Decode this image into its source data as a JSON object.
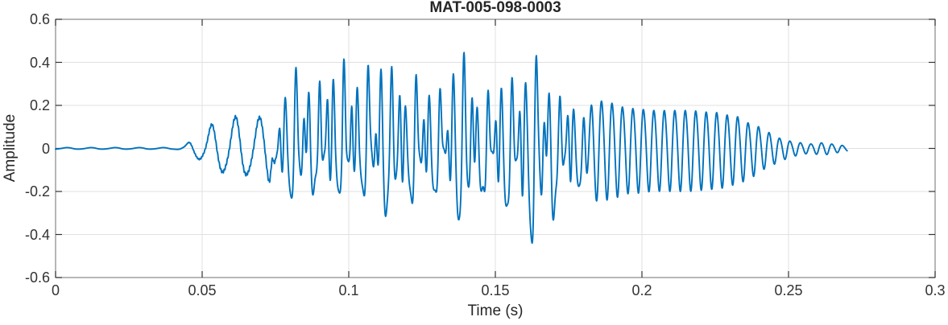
{
  "chart_data": {
    "type": "line",
    "title": "MAT-005-098-0003",
    "xlabel": "Time (s)",
    "ylabel": "Amplitude",
    "xlim": [
      0,
      0.3
    ],
    "ylim": [
      -0.6,
      0.6
    ],
    "grid": true,
    "legend": null,
    "xticks": [
      {
        "v": 0,
        "label": "0"
      },
      {
        "v": 0.05,
        "label": "0.05"
      },
      {
        "v": 0.1,
        "label": "0.1"
      },
      {
        "v": 0.15,
        "label": "0.15"
      },
      {
        "v": 0.2,
        "label": "0.2"
      },
      {
        "v": 0.25,
        "label": "0.25"
      },
      {
        "v": 0.3,
        "label": "0.3"
      }
    ],
    "yticks": [
      {
        "v": -0.6,
        "label": "-0.6"
      },
      {
        "v": -0.4,
        "label": "-0.4"
      },
      {
        "v": -0.2,
        "label": "-0.2"
      },
      {
        "v": 0,
        "label": "0"
      },
      {
        "v": 0.2,
        "label": "0.2"
      },
      {
        "v": 0.4,
        "label": "0.4"
      },
      {
        "v": 0.6,
        "label": "0.6"
      }
    ],
    "colors": {
      "line": "#0072BD",
      "grid": "#e0e0e0",
      "box": "#878787",
      "tick_mark": "#333333",
      "text": "#262626",
      "tick_text": "#333333"
    },
    "signal": {
      "description": "speech-like waveform: silence, 122Hz onset tone, dense harmonic voiced burst, 280Hz decaying ring tail",
      "duration": 0.27,
      "sample_rate": 9000,
      "f0_hz": 122,
      "formant_hz": 280,
      "segments": [
        {
          "name": "onset-tone",
          "t0": 0,
          "t1": 0.0745,
          "fade": 0.003,
          "components": [
            {
              "f": 122,
              "a": 1,
              "p": 4.9
            },
            {
              "f": 244,
              "a": 0.12,
              "p": 1.2
            },
            {
              "f": 1830,
              "a": 0.05,
              "p": 0.3
            }
          ]
        },
        {
          "name": "voiced-burst",
          "t0": 0.0745,
          "t1": 0.1815,
          "fade": 0.004,
          "components": [
            {
              "f": 122,
              "a": 0.5,
              "p": 0
            },
            {
              "f": 244,
              "a": 1.0,
              "p": 1.3
            },
            {
              "f": 366,
              "a": 0.75,
              "p": 2.3
            },
            {
              "f": 488,
              "a": 0.5,
              "p": 0.6
            },
            {
              "f": 610,
              "a": 0.3,
              "p": 2.9
            },
            {
              "f": 732,
              "a": 0.16,
              "p": 1.5
            },
            {
              "f": 317,
              "a": 0.35,
              "p": 0.8
            },
            {
              "f": 280,
              "a": 0.3,
              "p": 2.0
            }
          ]
        },
        {
          "name": "ring-tail",
          "t0": 0.1815,
          "t1": 0.27,
          "fade": 0.004,
          "components": [
            {
              "f": 280,
              "a": 1,
              "p": 0.6
            },
            {
              "f": 560,
              "a": 0.06,
              "p": 1.9
            }
          ]
        }
      ],
      "envelope_pos": [
        [
          0,
          0.004
        ],
        [
          0.04,
          0.004
        ],
        [
          0.0435,
          0.012
        ],
        [
          0.047,
          0.045
        ],
        [
          0.05,
          0.07
        ],
        [
          0.054,
          0.12
        ],
        [
          0.058,
          0.15
        ],
        [
          0.064,
          0.155
        ],
        [
          0.071,
          0.15
        ],
        [
          0.0745,
          0.22
        ],
        [
          0.078,
          0.34
        ],
        [
          0.083,
          0.38
        ],
        [
          0.088,
          0.46
        ],
        [
          0.092,
          0.53
        ],
        [
          0.097,
          0.5
        ],
        [
          0.103,
          0.5
        ],
        [
          0.108,
          0.465
        ],
        [
          0.113,
          0.45
        ],
        [
          0.118,
          0.43
        ],
        [
          0.123,
          0.45
        ],
        [
          0.128,
          0.41
        ],
        [
          0.133,
          0.4
        ],
        [
          0.138,
          0.43
        ],
        [
          0.143,
          0.45
        ],
        [
          0.148,
          0.43
        ],
        [
          0.153,
          0.42
        ],
        [
          0.158,
          0.46
        ],
        [
          0.163,
          0.44
        ],
        [
          0.168,
          0.4
        ],
        [
          0.173,
          0.36
        ],
        [
          0.178,
          0.29
        ],
        [
          0.1815,
          0.27
        ],
        [
          0.188,
          0.23
        ],
        [
          0.196,
          0.2
        ],
        [
          0.205,
          0.19
        ],
        [
          0.215,
          0.19
        ],
        [
          0.225,
          0.18
        ],
        [
          0.232,
          0.16
        ],
        [
          0.238,
          0.12
        ],
        [
          0.243,
          0.08
        ],
        [
          0.2475,
          0.05
        ],
        [
          0.252,
          0.032
        ],
        [
          0.257,
          0.022
        ],
        [
          0.262,
          0.028
        ],
        [
          0.266,
          0.02
        ],
        [
          0.27,
          0.012
        ]
      ],
      "envelope_neg": [
        [
          0,
          0.004
        ],
        [
          0.04,
          0.004
        ],
        [
          0.0435,
          0.012
        ],
        [
          0.047,
          0.045
        ],
        [
          0.05,
          0.07
        ],
        [
          0.054,
          0.11
        ],
        [
          0.058,
          0.14
        ],
        [
          0.064,
          0.15
        ],
        [
          0.071,
          0.15
        ],
        [
          0.0745,
          0.25
        ],
        [
          0.078,
          0.27
        ],
        [
          0.083,
          0.3
        ],
        [
          0.088,
          0.34
        ],
        [
          0.092,
          0.32
        ],
        [
          0.098,
          0.3
        ],
        [
          0.104,
          0.31
        ],
        [
          0.109,
          0.34
        ],
        [
          0.114,
          0.4
        ],
        [
          0.119,
          0.42
        ],
        [
          0.124,
          0.38
        ],
        [
          0.129,
          0.36
        ],
        [
          0.134,
          0.35
        ],
        [
          0.139,
          0.4
        ],
        [
          0.144,
          0.45
        ],
        [
          0.149,
          0.4
        ],
        [
          0.154,
          0.43
        ],
        [
          0.159,
          0.48
        ],
        [
          0.164,
          0.55
        ],
        [
          0.169,
          0.5
        ],
        [
          0.174,
          0.38
        ],
        [
          0.178,
          0.3
        ],
        [
          0.1815,
          0.27
        ],
        [
          0.188,
          0.24
        ],
        [
          0.196,
          0.21
        ],
        [
          0.205,
          0.2
        ],
        [
          0.215,
          0.2
        ],
        [
          0.225,
          0.19
        ],
        [
          0.232,
          0.17
        ],
        [
          0.238,
          0.13
        ],
        [
          0.243,
          0.09
        ],
        [
          0.2475,
          0.055
        ],
        [
          0.252,
          0.035
        ],
        [
          0.257,
          0.024
        ],
        [
          0.262,
          0.03
        ],
        [
          0.266,
          0.02
        ],
        [
          0.27,
          0.012
        ]
      ]
    }
  }
}
